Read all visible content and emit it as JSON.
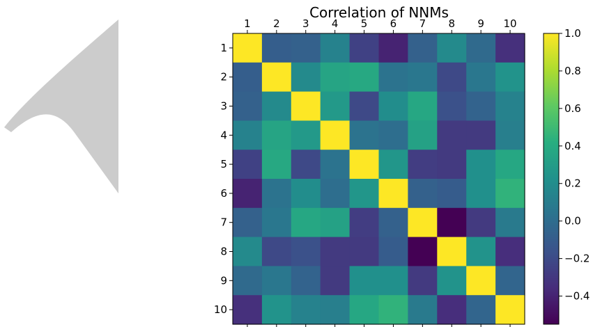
{
  "chart_data": {
    "type": "heatmap",
    "title": "Correlation of NNMs",
    "x_categories": [
      "1",
      "2",
      "3",
      "4",
      "5",
      "6",
      "7",
      "8",
      "9",
      "10"
    ],
    "y_categories": [
      "1",
      "2",
      "3",
      "4",
      "5",
      "6",
      "7",
      "8",
      "9",
      "10"
    ],
    "values": [
      [
        1.0,
        -0.09,
        -0.07,
        0.13,
        -0.25,
        -0.4,
        -0.07,
        0.18,
        -0.02,
        -0.34
      ],
      [
        -0.09,
        1.0,
        0.18,
        0.35,
        0.38,
        0.04,
        0.06,
        -0.21,
        0.06,
        0.24
      ],
      [
        -0.07,
        0.18,
        1.0,
        0.28,
        -0.21,
        0.2,
        0.37,
        -0.17,
        -0.06,
        0.13
      ],
      [
        0.13,
        0.35,
        0.28,
        1.0,
        0.04,
        0.01,
        0.33,
        -0.29,
        -0.29,
        0.11
      ],
      [
        -0.25,
        0.38,
        -0.21,
        0.04,
        1.0,
        0.26,
        -0.27,
        -0.29,
        0.22,
        0.37
      ],
      [
        -0.4,
        0.04,
        0.2,
        0.01,
        0.26,
        1.0,
        -0.07,
        -0.1,
        0.22,
        0.45
      ],
      [
        -0.07,
        0.06,
        0.37,
        0.33,
        -0.27,
        -0.07,
        1.0,
        -0.55,
        -0.29,
        0.08
      ],
      [
        0.18,
        -0.21,
        -0.17,
        -0.29,
        -0.29,
        -0.1,
        -0.55,
        1.0,
        0.24,
        -0.35
      ],
      [
        -0.02,
        0.06,
        -0.06,
        -0.29,
        0.22,
        0.22,
        -0.29,
        0.24,
        1.0,
        -0.05
      ],
      [
        -0.34,
        0.24,
        0.13,
        0.11,
        0.37,
        0.45,
        0.08,
        -0.35,
        -0.05,
        1.0
      ]
    ],
    "colormap": "viridis",
    "vmin": -0.55,
    "vmax": 1.0,
    "colorbar_ticks": [
      "1.0",
      "0.8",
      "0.6",
      "0.4",
      "0.2",
      "0.0",
      "−0.2",
      "−0.4"
    ],
    "colorbar_tick_values": [
      1.0,
      0.8,
      0.6,
      0.4,
      0.2,
      0.0,
      -0.2,
      -0.4
    ],
    "x_axis_position": "top",
    "grid": false,
    "watermark_color": "#cccccc"
  }
}
